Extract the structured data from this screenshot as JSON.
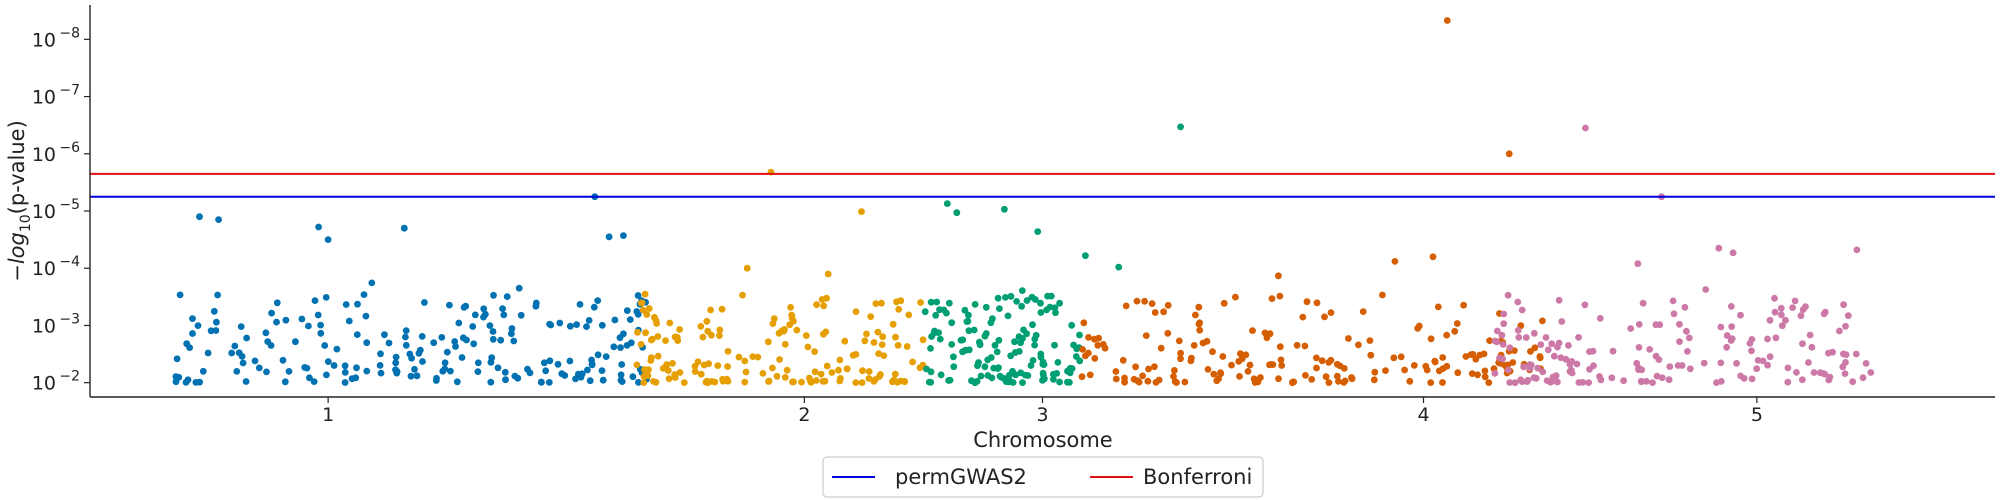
{
  "chart_data": {
    "type": "scatter",
    "title": "",
    "xlabel": "Chromosome",
    "ylabel_parts": {
      "prefix": "−log",
      "subscript": "10",
      "suffix": "(p-value)"
    },
    "x_ticks": [
      {
        "label": "1",
        "value": 0.5
      },
      {
        "label": "2",
        "value": 1.5
      },
      {
        "label": "3",
        "value": 2.0
      },
      {
        "label": "4",
        "value": 2.8
      },
      {
        "label": "5",
        "value": 3.5
      }
    ],
    "xlim": [
      0,
      4.0
    ],
    "ylim": [
      1.75,
      8.6
    ],
    "y_ticks": [
      {
        "base": "10",
        "exp": "−2",
        "value": 2
      },
      {
        "base": "10",
        "exp": "−3",
        "value": 3
      },
      {
        "base": "10",
        "exp": "−4",
        "value": 4
      },
      {
        "base": "10",
        "exp": "−5",
        "value": 5
      },
      {
        "base": "10",
        "exp": "−6",
        "value": 6
      },
      {
        "base": "10",
        "exp": "−7",
        "value": 7
      },
      {
        "base": "10",
        "exp": "−8",
        "value": 8
      }
    ],
    "thresholds": [
      {
        "name": "permGWAS2",
        "value": 5.25,
        "color": "#0000dd"
      },
      {
        "name": "Bonferroni",
        "value": 5.65,
        "color": "#dd1111"
      }
    ],
    "legend_placement": "bottom-center",
    "grid": false,
    "chromosomes": [
      {
        "chrom": "1",
        "color": "#0072b2",
        "range": [
          0.18,
          1.17
        ],
        "seed": 11,
        "n": 210,
        "highlights": [
          [
            0.23,
            4.9
          ],
          [
            0.27,
            4.85
          ],
          [
            0.48,
            4.72
          ],
          [
            0.5,
            4.5
          ],
          [
            1.06,
            5.25
          ],
          [
            1.09,
            4.55
          ],
          [
            1.12,
            4.57
          ],
          [
            0.66,
            4.7
          ]
        ]
      },
      {
        "chrom": "2",
        "color": "#e69f00",
        "range": [
          1.14,
          1.75
        ],
        "seed": 23,
        "n": 170,
        "highlights": [
          [
            1.43,
            5.68
          ],
          [
            1.62,
            4.99
          ],
          [
            1.38,
            4.0
          ],
          [
            1.55,
            3.9
          ]
        ]
      },
      {
        "chrom": "3",
        "color": "#009e73",
        "range": [
          1.75,
          2.08
        ],
        "seed": 37,
        "n": 140,
        "highlights": [
          [
            1.8,
            5.13
          ],
          [
            1.92,
            5.03
          ],
          [
            1.82,
            4.97
          ],
          [
            1.99,
            4.64
          ],
          [
            2.09,
            4.22
          ],
          [
            2.29,
            6.47
          ],
          [
            2.16,
            4.02
          ]
        ]
      },
      {
        "chrom": "4",
        "color": "#d55e00",
        "range": [
          2.08,
          3.05
        ],
        "seed": 51,
        "n": 190,
        "highlights": [
          [
            2.85,
            8.33
          ],
          [
            2.98,
            6.0
          ],
          [
            2.82,
            4.2
          ],
          [
            2.74,
            4.12
          ]
        ]
      },
      {
        "chrom": "5",
        "color": "#cc79a7",
        "range": [
          2.95,
          3.74
        ],
        "seed": 67,
        "n": 175,
        "highlights": [
          [
            3.14,
            6.45
          ],
          [
            3.3,
            5.25
          ],
          [
            3.71,
            4.32
          ],
          [
            3.42,
            4.35
          ],
          [
            3.45,
            4.27
          ],
          [
            3.25,
            4.08
          ]
        ]
      }
    ]
  }
}
